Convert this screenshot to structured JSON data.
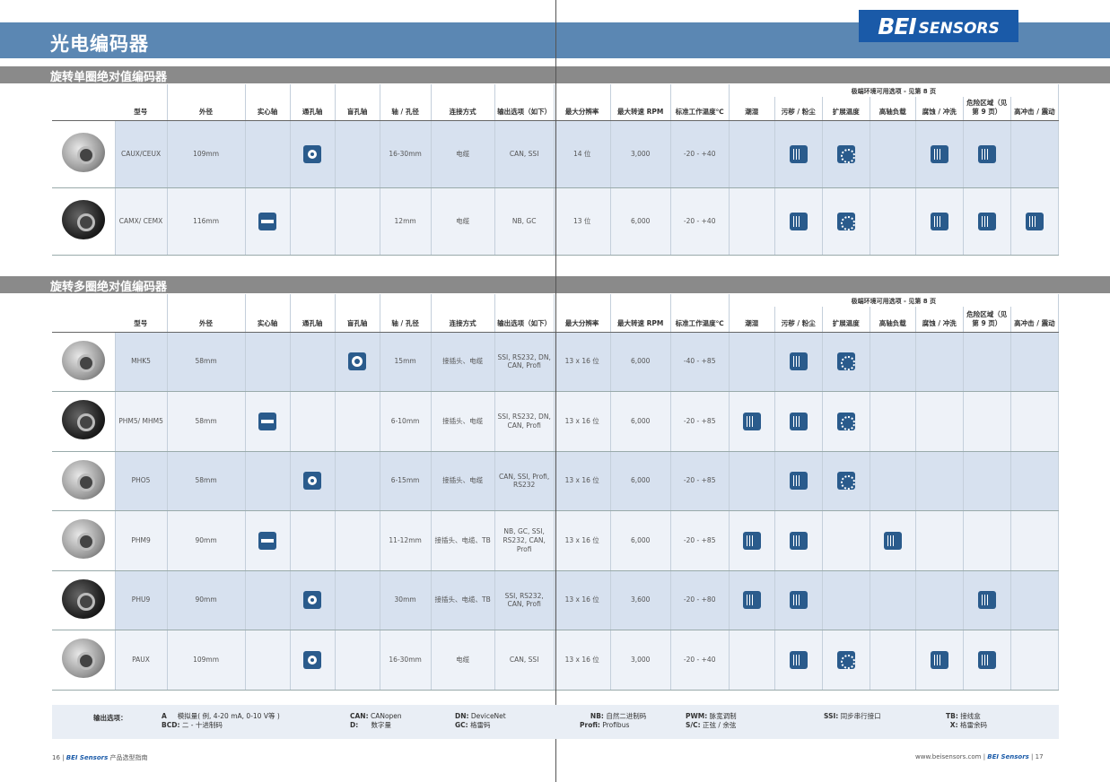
{
  "page_title": "光电编码器",
  "logo": {
    "bei": "BEI",
    "sensors": "SENSORS"
  },
  "section1_title": "旋转单圈绝对值编码器",
  "section2_title": "旋转多圈绝对值编码器",
  "env_header": "极端环境可用选项 - 见第 8 页",
  "headers": [
    "型号",
    "外径",
    "实心轴",
    "通孔轴",
    "盲孔轴",
    "轴 / 孔径",
    "连接方式",
    "输出选项（如下）",
    "最大分辨率",
    "最大转速 RPM",
    "标准工作温度℃",
    "潮湿",
    "污秽 / 粉尘",
    "扩展温度",
    "高轴负载",
    "腐蚀 / 冲洗",
    "危险区域（见第 9 页）",
    "高冲击 / 震动"
  ],
  "single_turn": [
    {
      "model": "CAUX/CEUX",
      "diameter": "109mm",
      "shaft": "",
      "hollow": "hollow-shaft-icon",
      "blind": "",
      "bore": "16-30mm",
      "connection": "电缆",
      "output": "CAN, SSI",
      "resolution": "14 位",
      "rpm": "3,000",
      "temp": "-20 - +40",
      "env": [
        0,
        1,
        1,
        0,
        1,
        1,
        0
      ]
    },
    {
      "model": "CAMX/ CEMX",
      "diameter": "116mm",
      "shaft": "solid-shaft-icon",
      "hollow": "",
      "blind": "",
      "bore": "12mm",
      "connection": "电缆",
      "output": "NB, GC",
      "resolution": "13 位",
      "rpm": "6,000",
      "temp": "-20 - +40",
      "env": [
        0,
        1,
        1,
        0,
        1,
        1,
        1
      ]
    }
  ],
  "multi_turn": [
    {
      "model": "MHK5",
      "diameter": "58mm",
      "shaft": "",
      "hollow": "",
      "blind": "blind-hole-icon",
      "bore": "15mm",
      "connection": "接插头、电缆",
      "output": "SSI, RS232, DN, CAN, Profi",
      "resolution": "13 x 16 位",
      "rpm": "6,000",
      "temp": "-40 - +85",
      "env": [
        0,
        1,
        1,
        0,
        0,
        0,
        0
      ]
    },
    {
      "model": "PHM5/ MHM5",
      "diameter": "58mm",
      "shaft": "solid-shaft-icon",
      "hollow": "",
      "blind": "",
      "bore": "6-10mm",
      "connection": "接插头、电缆",
      "output": "SSI, RS232, DN, CAN, Profi",
      "resolution": "13 x 16 位",
      "rpm": "6,000",
      "temp": "-20 - +85",
      "env": [
        1,
        1,
        1,
        0,
        0,
        0,
        0
      ]
    },
    {
      "model": "PHO5",
      "diameter": "58mm",
      "shaft": "",
      "hollow": "hollow-shaft-icon",
      "blind": "",
      "bore": "6-15mm",
      "connection": "接插头、电缆",
      "output": "CAN, SSI, Profi, RS232",
      "resolution": "13 x 16 位",
      "rpm": "6,000",
      "temp": "-20 - +85",
      "env": [
        0,
        1,
        1,
        0,
        0,
        0,
        0
      ]
    },
    {
      "model": "PHM9",
      "diameter": "90mm",
      "shaft": "solid-shaft-icon",
      "hollow": "",
      "blind": "",
      "bore": "11-12mm",
      "connection": "接插头、电缆、TB",
      "output": "NB, GC, SSI, RS232, CAN, Profi",
      "resolution": "13 x 16 位",
      "rpm": "6,000",
      "temp": "-20 - +85",
      "env": [
        1,
        1,
        0,
        1,
        0,
        0,
        0
      ]
    },
    {
      "model": "PHU9",
      "diameter": "90mm",
      "shaft": "",
      "hollow": "hollow-shaft-icon",
      "blind": "",
      "bore": "30mm",
      "connection": "接插头、电缆、TB",
      "output": "SSI, RS232, CAN, Profi",
      "resolution": "13 x 16 位",
      "rpm": "3,600",
      "temp": "-20 - +80",
      "env": [
        1,
        1,
        0,
        0,
        0,
        1,
        0
      ]
    },
    {
      "model": "PAUX",
      "diameter": "109mm",
      "shaft": "",
      "hollow": "hollow-shaft-icon",
      "blind": "",
      "bore": "16-30mm",
      "connection": "电缆",
      "output": "CAN, SSI",
      "resolution": "13 x 16 位",
      "rpm": "3,000",
      "temp": "-20 - +40",
      "env": [
        0,
        1,
        1,
        0,
        1,
        1,
        0
      ]
    }
  ],
  "legend": {
    "label": "输出选项：",
    "a": "A",
    "a_text": "模拟量( 例, 4-20 mA, 0-10 V等 )",
    "bcd": "BCD:",
    "bcd_text": "二 - 十进制码",
    "can": "CAN:",
    "can_text": "CANopen",
    "d": "D:",
    "d_text": "数字量",
    "dn": "DN:",
    "dn_text": "DeviceNet",
    "gc": "GC:",
    "gc_text": "格雷码",
    "nb": "NB:",
    "nb_text": "自然二进制码",
    "profi": "Profi:",
    "profi_text": "Profibus",
    "pwm": "PWM:",
    "pwm_text": "脉宽调制",
    "sc": "S/C:",
    "sc_text": "正弦 / 余弦",
    "ssi": "SSI:",
    "ssi_text": "同步串行接口",
    "tb": "TB:",
    "tb_text": "接线盒",
    "x": "X:",
    "x_text": "格雷余码"
  },
  "footer_left": {
    "page": "16",
    "brand": "BEI Sensors",
    "text": "产品选型指南"
  },
  "footer_right": {
    "url": "www.beisensors.com",
    "brand": "BEI Sensors",
    "page": "17"
  }
}
